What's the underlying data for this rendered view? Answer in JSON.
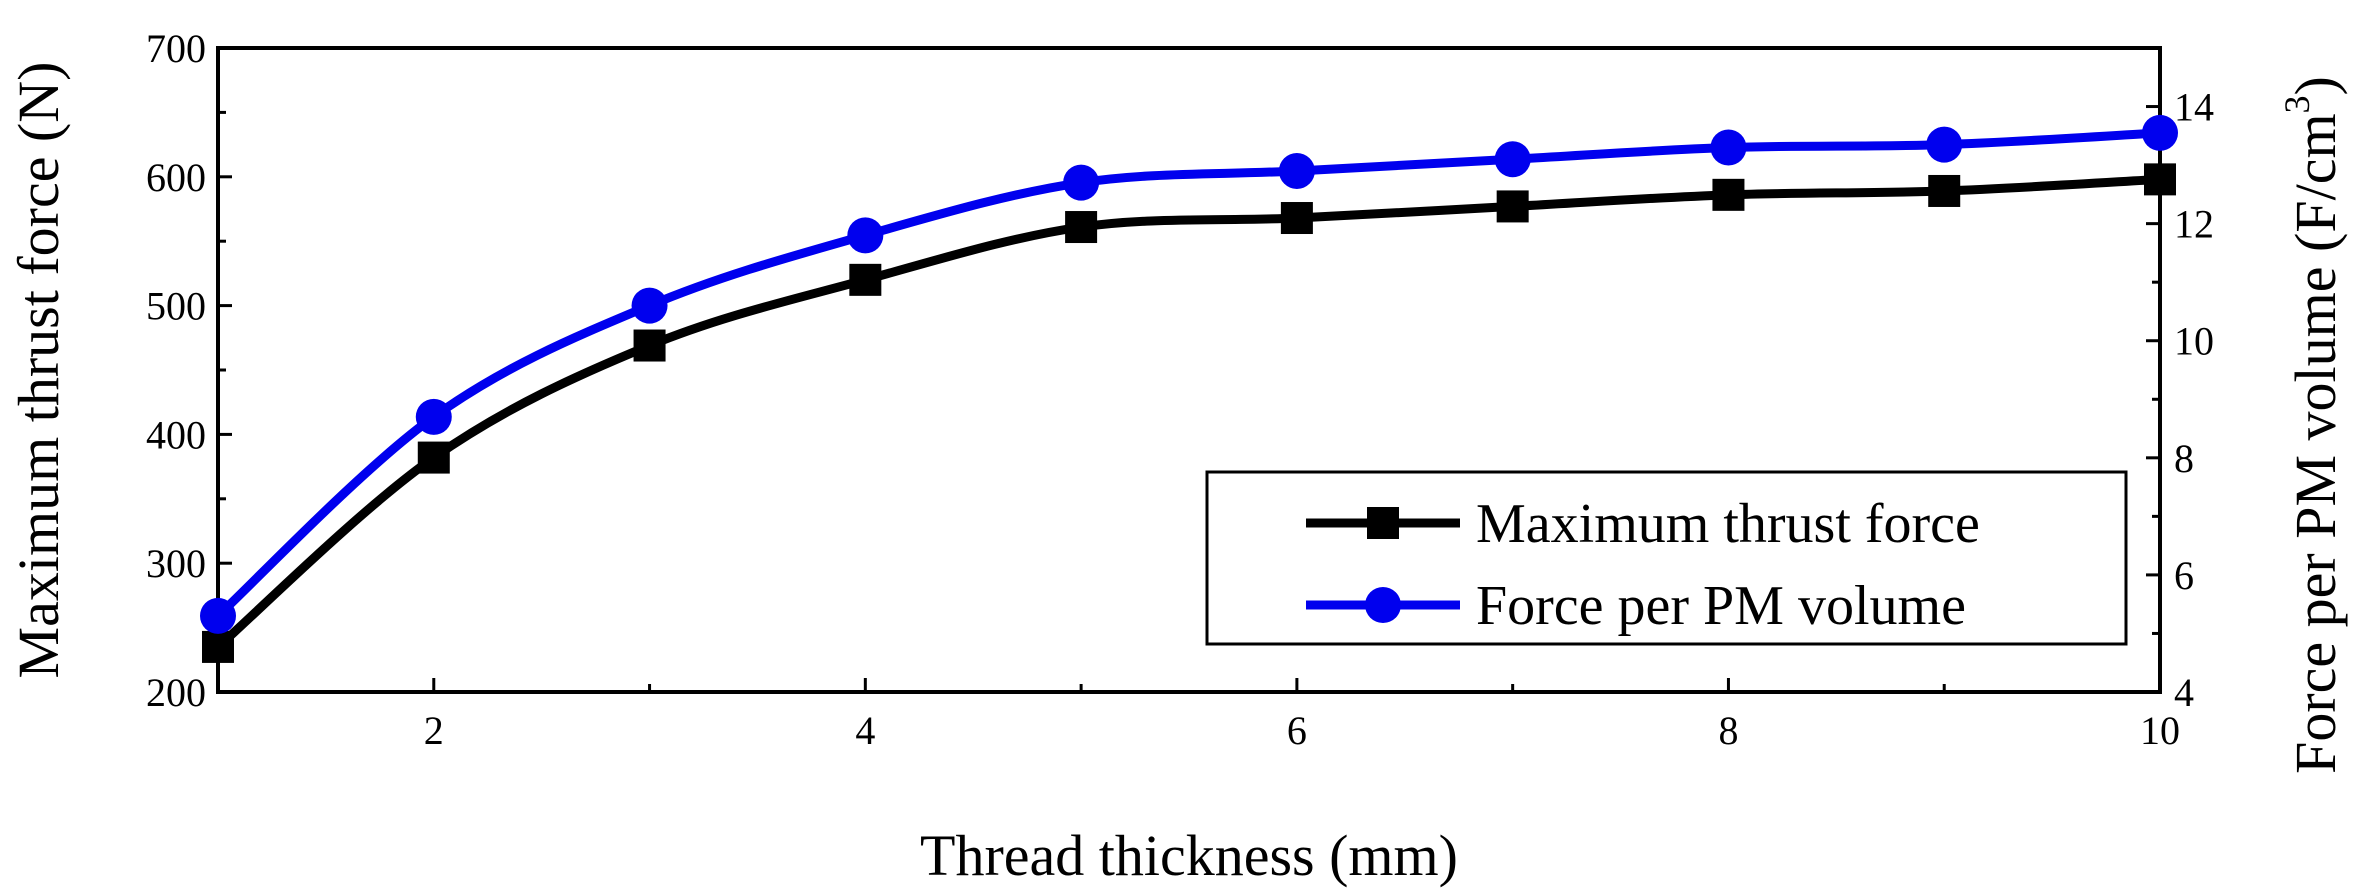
{
  "chart_data": {
    "type": "line",
    "title": "",
    "xlabel": "Thread thickness (mm)",
    "ylabel_left": "Maximum thrust force (N)",
    "ylabel_right_main": "Force per PM volume (F/cm",
    "ylabel_right_sup": "3",
    "ylabel_right_close": ")",
    "x": [
      1,
      2,
      3,
      4,
      5,
      6,
      7,
      8,
      9,
      10
    ],
    "xlim": [
      1,
      10
    ],
    "ylim_left": [
      200,
      700
    ],
    "ylim_right": [
      4,
      15
    ],
    "x_ticks": [
      "2",
      "4",
      "6",
      "8",
      "10"
    ],
    "y_ticks_left": [
      "200",
      "300",
      "400",
      "500",
      "600",
      "700"
    ],
    "y_ticks_right": [
      "4",
      "6",
      "8",
      "10",
      "12",
      "14"
    ],
    "grid": false,
    "legend_position": "lower-right",
    "series": [
      {
        "name": "Maximum thrust force",
        "axis": "left",
        "marker": "square",
        "color": "#000000",
        "values": [
          235,
          382,
          469,
          520,
          561,
          568,
          577,
          586,
          589,
          598
        ]
      },
      {
        "name": "Force per PM volume",
        "axis": "right",
        "marker": "circle",
        "color": "#0000ee",
        "values": [
          5.3,
          8.7,
          10.6,
          11.8,
          12.7,
          12.9,
          13.1,
          13.3,
          13.35,
          13.55
        ]
      }
    ]
  }
}
